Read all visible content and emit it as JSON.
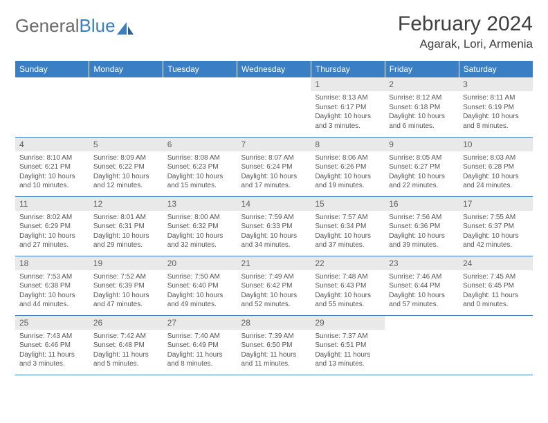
{
  "brand": {
    "part1": "General",
    "part2": "Blue"
  },
  "title": "February 2024",
  "location": "Agarak, Lori, Armenia",
  "header_color": "#3a7fc4",
  "daynum_bg": "#e9e9e9",
  "text_color": "#555555",
  "weekdays": [
    "Sunday",
    "Monday",
    "Tuesday",
    "Wednesday",
    "Thursday",
    "Friday",
    "Saturday"
  ],
  "weeks": [
    [
      null,
      null,
      null,
      null,
      {
        "n": "1",
        "sr": "8:13 AM",
        "ss": "6:17 PM",
        "dl": "10 hours and 3 minutes."
      },
      {
        "n": "2",
        "sr": "8:12 AM",
        "ss": "6:18 PM",
        "dl": "10 hours and 6 minutes."
      },
      {
        "n": "3",
        "sr": "8:11 AM",
        "ss": "6:19 PM",
        "dl": "10 hours and 8 minutes."
      }
    ],
    [
      {
        "n": "4",
        "sr": "8:10 AM",
        "ss": "6:21 PM",
        "dl": "10 hours and 10 minutes."
      },
      {
        "n": "5",
        "sr": "8:09 AM",
        "ss": "6:22 PM",
        "dl": "10 hours and 12 minutes."
      },
      {
        "n": "6",
        "sr": "8:08 AM",
        "ss": "6:23 PM",
        "dl": "10 hours and 15 minutes."
      },
      {
        "n": "7",
        "sr": "8:07 AM",
        "ss": "6:24 PM",
        "dl": "10 hours and 17 minutes."
      },
      {
        "n": "8",
        "sr": "8:06 AM",
        "ss": "6:26 PM",
        "dl": "10 hours and 19 minutes."
      },
      {
        "n": "9",
        "sr": "8:05 AM",
        "ss": "6:27 PM",
        "dl": "10 hours and 22 minutes."
      },
      {
        "n": "10",
        "sr": "8:03 AM",
        "ss": "6:28 PM",
        "dl": "10 hours and 24 minutes."
      }
    ],
    [
      {
        "n": "11",
        "sr": "8:02 AM",
        "ss": "6:29 PM",
        "dl": "10 hours and 27 minutes."
      },
      {
        "n": "12",
        "sr": "8:01 AM",
        "ss": "6:31 PM",
        "dl": "10 hours and 29 minutes."
      },
      {
        "n": "13",
        "sr": "8:00 AM",
        "ss": "6:32 PM",
        "dl": "10 hours and 32 minutes."
      },
      {
        "n": "14",
        "sr": "7:59 AM",
        "ss": "6:33 PM",
        "dl": "10 hours and 34 minutes."
      },
      {
        "n": "15",
        "sr": "7:57 AM",
        "ss": "6:34 PM",
        "dl": "10 hours and 37 minutes."
      },
      {
        "n": "16",
        "sr": "7:56 AM",
        "ss": "6:36 PM",
        "dl": "10 hours and 39 minutes."
      },
      {
        "n": "17",
        "sr": "7:55 AM",
        "ss": "6:37 PM",
        "dl": "10 hours and 42 minutes."
      }
    ],
    [
      {
        "n": "18",
        "sr": "7:53 AM",
        "ss": "6:38 PM",
        "dl": "10 hours and 44 minutes."
      },
      {
        "n": "19",
        "sr": "7:52 AM",
        "ss": "6:39 PM",
        "dl": "10 hours and 47 minutes."
      },
      {
        "n": "20",
        "sr": "7:50 AM",
        "ss": "6:40 PM",
        "dl": "10 hours and 49 minutes."
      },
      {
        "n": "21",
        "sr": "7:49 AM",
        "ss": "6:42 PM",
        "dl": "10 hours and 52 minutes."
      },
      {
        "n": "22",
        "sr": "7:48 AM",
        "ss": "6:43 PM",
        "dl": "10 hours and 55 minutes."
      },
      {
        "n": "23",
        "sr": "7:46 AM",
        "ss": "6:44 PM",
        "dl": "10 hours and 57 minutes."
      },
      {
        "n": "24",
        "sr": "7:45 AM",
        "ss": "6:45 PM",
        "dl": "11 hours and 0 minutes."
      }
    ],
    [
      {
        "n": "25",
        "sr": "7:43 AM",
        "ss": "6:46 PM",
        "dl": "11 hours and 3 minutes."
      },
      {
        "n": "26",
        "sr": "7:42 AM",
        "ss": "6:48 PM",
        "dl": "11 hours and 5 minutes."
      },
      {
        "n": "27",
        "sr": "7:40 AM",
        "ss": "6:49 PM",
        "dl": "11 hours and 8 minutes."
      },
      {
        "n": "28",
        "sr": "7:39 AM",
        "ss": "6:50 PM",
        "dl": "11 hours and 11 minutes."
      },
      {
        "n": "29",
        "sr": "7:37 AM",
        "ss": "6:51 PM",
        "dl": "11 hours and 13 minutes."
      },
      null,
      null
    ]
  ]
}
